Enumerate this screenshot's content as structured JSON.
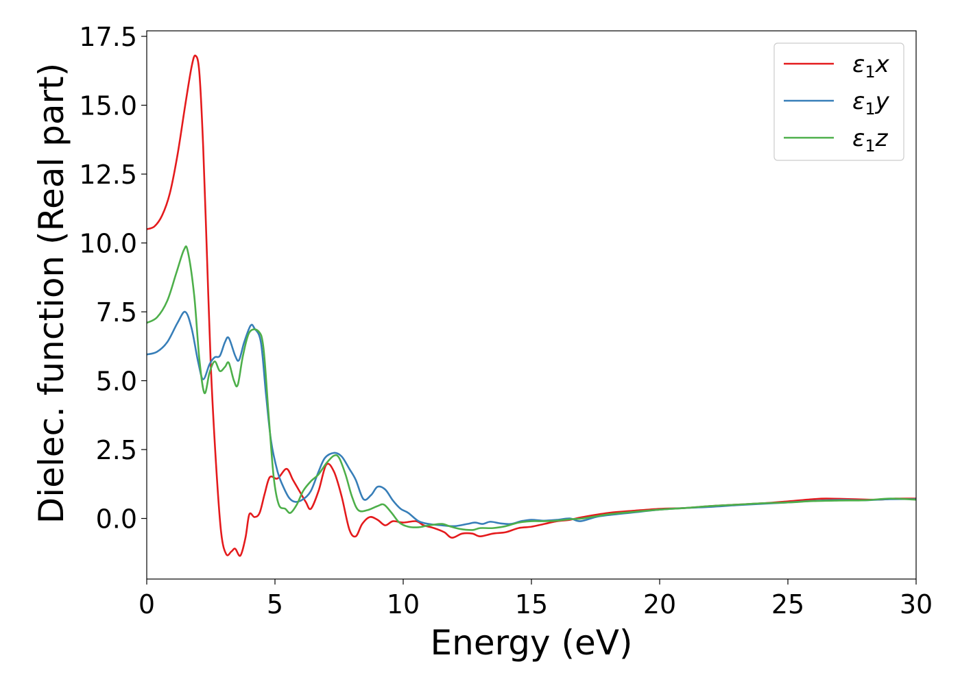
{
  "chart_data": {
    "type": "line",
    "xlabel": "Energy (eV)",
    "ylabel": "Dielec. function (Real part)",
    "xlim": [
      0,
      30
    ],
    "ylim": [
      -2.2,
      17.7
    ],
    "x_ticks": [
      0,
      5,
      10,
      15,
      20,
      25,
      30
    ],
    "x_tick_labels": [
      "0",
      "5",
      "10",
      "15",
      "20",
      "25",
      "30"
    ],
    "y_ticks": [
      0.0,
      2.5,
      5.0,
      7.5,
      10.0,
      12.5,
      15.0,
      17.5
    ],
    "y_tick_labels": [
      "0.0",
      "2.5",
      "5.0",
      "7.5",
      "10.0",
      "12.5",
      "15.0",
      "17.5"
    ],
    "grid": false,
    "legend_position": "top-right",
    "series": [
      {
        "name": "ε₁x",
        "legend": {
          "base": "ε",
          "sub": "1",
          "var": "x"
        },
        "color": "#e41a1c",
        "points": [
          [
            0,
            10.5
          ],
          [
            0.3,
            10.6
          ],
          [
            0.6,
            11.0
          ],
          [
            0.9,
            11.8
          ],
          [
            1.2,
            13.2
          ],
          [
            1.5,
            15.0
          ],
          [
            1.75,
            16.4
          ],
          [
            1.9,
            16.8
          ],
          [
            2.05,
            16.2
          ],
          [
            2.2,
            13.5
          ],
          [
            2.35,
            9.5
          ],
          [
            2.5,
            5.5
          ],
          [
            2.7,
            2.0
          ],
          [
            2.9,
            -0.5
          ],
          [
            3.1,
            -1.3
          ],
          [
            3.3,
            -1.2
          ],
          [
            3.45,
            -1.1
          ],
          [
            3.65,
            -1.35
          ],
          [
            3.85,
            -0.7
          ],
          [
            4.0,
            0.15
          ],
          [
            4.2,
            0.05
          ],
          [
            4.4,
            0.2
          ],
          [
            4.6,
            0.9
          ],
          [
            4.8,
            1.5
          ],
          [
            5.1,
            1.45
          ],
          [
            5.45,
            1.8
          ],
          [
            5.7,
            1.4
          ],
          [
            5.95,
            1.0
          ],
          [
            6.2,
            0.6
          ],
          [
            6.4,
            0.35
          ],
          [
            6.7,
            1.0
          ],
          [
            7.0,
            1.95
          ],
          [
            7.3,
            1.7
          ],
          [
            7.6,
            0.8
          ],
          [
            7.9,
            -0.4
          ],
          [
            8.15,
            -0.65
          ],
          [
            8.4,
            -0.2
          ],
          [
            8.7,
            0.05
          ],
          [
            9.0,
            -0.05
          ],
          [
            9.3,
            -0.25
          ],
          [
            9.6,
            -0.1
          ],
          [
            10.0,
            -0.15
          ],
          [
            10.5,
            -0.1
          ],
          [
            10.8,
            -0.25
          ],
          [
            11.2,
            -0.35
          ],
          [
            11.6,
            -0.5
          ],
          [
            11.9,
            -0.7
          ],
          [
            12.3,
            -0.55
          ],
          [
            12.7,
            -0.55
          ],
          [
            13.0,
            -0.65
          ],
          [
            13.5,
            -0.55
          ],
          [
            14.0,
            -0.5
          ],
          [
            14.5,
            -0.35
          ],
          [
            15.0,
            -0.3
          ],
          [
            15.5,
            -0.2
          ],
          [
            16.0,
            -0.1
          ],
          [
            16.5,
            -0.05
          ],
          [
            17.0,
            0.05
          ],
          [
            18.0,
            0.2
          ],
          [
            19.0,
            0.28
          ],
          [
            20.0,
            0.35
          ],
          [
            21.0,
            0.38
          ],
          [
            22.0,
            0.45
          ],
          [
            23.0,
            0.5
          ],
          [
            24.0,
            0.55
          ],
          [
            25.0,
            0.62
          ],
          [
            26.0,
            0.7
          ],
          [
            26.5,
            0.72
          ],
          [
            27.5,
            0.7
          ],
          [
            28.5,
            0.68
          ],
          [
            29.2,
            0.72
          ],
          [
            30.0,
            0.72
          ]
        ]
      },
      {
        "name": "ε₁y",
        "legend": {
          "base": "ε",
          "sub": "1",
          "var": "y"
        },
        "color": "#377eb8",
        "points": [
          [
            0,
            5.95
          ],
          [
            0.4,
            6.05
          ],
          [
            0.8,
            6.4
          ],
          [
            1.2,
            7.1
          ],
          [
            1.5,
            7.5
          ],
          [
            1.75,
            6.9
          ],
          [
            2.0,
            5.7
          ],
          [
            2.2,
            5.05
          ],
          [
            2.45,
            5.6
          ],
          [
            2.65,
            5.85
          ],
          [
            2.85,
            5.9
          ],
          [
            3.05,
            6.4
          ],
          [
            3.2,
            6.55
          ],
          [
            3.45,
            5.9
          ],
          [
            3.6,
            5.75
          ],
          [
            3.8,
            6.4
          ],
          [
            4.05,
            7.0
          ],
          [
            4.2,
            6.9
          ],
          [
            4.45,
            6.4
          ],
          [
            4.65,
            4.5
          ],
          [
            4.85,
            2.8
          ],
          [
            5.1,
            1.7
          ],
          [
            5.3,
            1.2
          ],
          [
            5.55,
            0.75
          ],
          [
            5.8,
            0.6
          ],
          [
            6.1,
            0.7
          ],
          [
            6.4,
            1.0
          ],
          [
            6.7,
            1.7
          ],
          [
            6.95,
            2.2
          ],
          [
            7.3,
            2.38
          ],
          [
            7.6,
            2.25
          ],
          [
            7.9,
            1.8
          ],
          [
            8.15,
            1.4
          ],
          [
            8.45,
            0.7
          ],
          [
            8.75,
            0.85
          ],
          [
            9.0,
            1.15
          ],
          [
            9.3,
            1.05
          ],
          [
            9.6,
            0.65
          ],
          [
            9.9,
            0.35
          ],
          [
            10.2,
            0.2
          ],
          [
            10.6,
            -0.1
          ],
          [
            11.0,
            -0.2
          ],
          [
            11.5,
            -0.25
          ],
          [
            12.0,
            -0.28
          ],
          [
            12.5,
            -0.2
          ],
          [
            12.8,
            -0.15
          ],
          [
            13.1,
            -0.2
          ],
          [
            13.4,
            -0.12
          ],
          [
            13.8,
            -0.18
          ],
          [
            14.2,
            -0.2
          ],
          [
            14.6,
            -0.1
          ],
          [
            15.0,
            -0.05
          ],
          [
            15.5,
            -0.08
          ],
          [
            16.0,
            -0.05
          ],
          [
            16.5,
            0.0
          ],
          [
            16.9,
            -0.1
          ],
          [
            17.5,
            0.05
          ],
          [
            18.0,
            0.12
          ],
          [
            19.0,
            0.22
          ],
          [
            20.0,
            0.32
          ],
          [
            21.0,
            0.38
          ],
          [
            22.0,
            0.42
          ],
          [
            23.0,
            0.48
          ],
          [
            24.0,
            0.53
          ],
          [
            25.0,
            0.58
          ],
          [
            26.0,
            0.64
          ],
          [
            27.0,
            0.67
          ],
          [
            28.0,
            0.66
          ],
          [
            29.0,
            0.7
          ],
          [
            30.0,
            0.7
          ]
        ]
      },
      {
        "name": "ε₁z",
        "legend": {
          "base": "ε",
          "sub": "1",
          "var": "z"
        },
        "color": "#4daf4a",
        "points": [
          [
            0,
            7.1
          ],
          [
            0.4,
            7.3
          ],
          [
            0.8,
            7.9
          ],
          [
            1.15,
            8.9
          ],
          [
            1.45,
            9.75
          ],
          [
            1.6,
            9.7
          ],
          [
            1.85,
            8.1
          ],
          [
            2.05,
            5.8
          ],
          [
            2.25,
            4.55
          ],
          [
            2.45,
            5.3
          ],
          [
            2.65,
            5.7
          ],
          [
            2.85,
            5.35
          ],
          [
            3.05,
            5.5
          ],
          [
            3.2,
            5.65
          ],
          [
            3.4,
            5.0
          ],
          [
            3.55,
            4.85
          ],
          [
            3.75,
            5.9
          ],
          [
            4.0,
            6.75
          ],
          [
            4.35,
            6.8
          ],
          [
            4.55,
            6.2
          ],
          [
            4.75,
            3.8
          ],
          [
            4.95,
            1.5
          ],
          [
            5.15,
            0.5
          ],
          [
            5.4,
            0.35
          ],
          [
            5.6,
            0.2
          ],
          [
            5.85,
            0.5
          ],
          [
            6.1,
            1.0
          ],
          [
            6.4,
            1.35
          ],
          [
            6.7,
            1.6
          ],
          [
            7.0,
            2.0
          ],
          [
            7.3,
            2.28
          ],
          [
            7.5,
            2.2
          ],
          [
            7.75,
            1.6
          ],
          [
            8.0,
            0.8
          ],
          [
            8.25,
            0.3
          ],
          [
            8.6,
            0.3
          ],
          [
            9.0,
            0.45
          ],
          [
            9.25,
            0.5
          ],
          [
            9.55,
            0.2
          ],
          [
            9.85,
            -0.15
          ],
          [
            10.2,
            -0.3
          ],
          [
            10.6,
            -0.32
          ],
          [
            11.0,
            -0.25
          ],
          [
            11.5,
            -0.2
          ],
          [
            11.8,
            -0.28
          ],
          [
            12.2,
            -0.38
          ],
          [
            12.7,
            -0.42
          ],
          [
            13.0,
            -0.35
          ],
          [
            13.5,
            -0.35
          ],
          [
            14.0,
            -0.28
          ],
          [
            14.5,
            -0.15
          ],
          [
            15.0,
            -0.1
          ],
          [
            15.5,
            -0.1
          ],
          [
            16.0,
            -0.08
          ],
          [
            16.5,
            -0.03
          ],
          [
            17.0,
            0.0
          ],
          [
            18.0,
            0.15
          ],
          [
            19.0,
            0.24
          ],
          [
            20.0,
            0.32
          ],
          [
            21.0,
            0.38
          ],
          [
            22.0,
            0.45
          ],
          [
            23.0,
            0.5
          ],
          [
            24.0,
            0.55
          ],
          [
            25.0,
            0.58
          ],
          [
            26.0,
            0.63
          ],
          [
            27.0,
            0.65
          ],
          [
            28.0,
            0.66
          ],
          [
            29.0,
            0.72
          ],
          [
            30.0,
            0.68
          ]
        ]
      }
    ]
  }
}
